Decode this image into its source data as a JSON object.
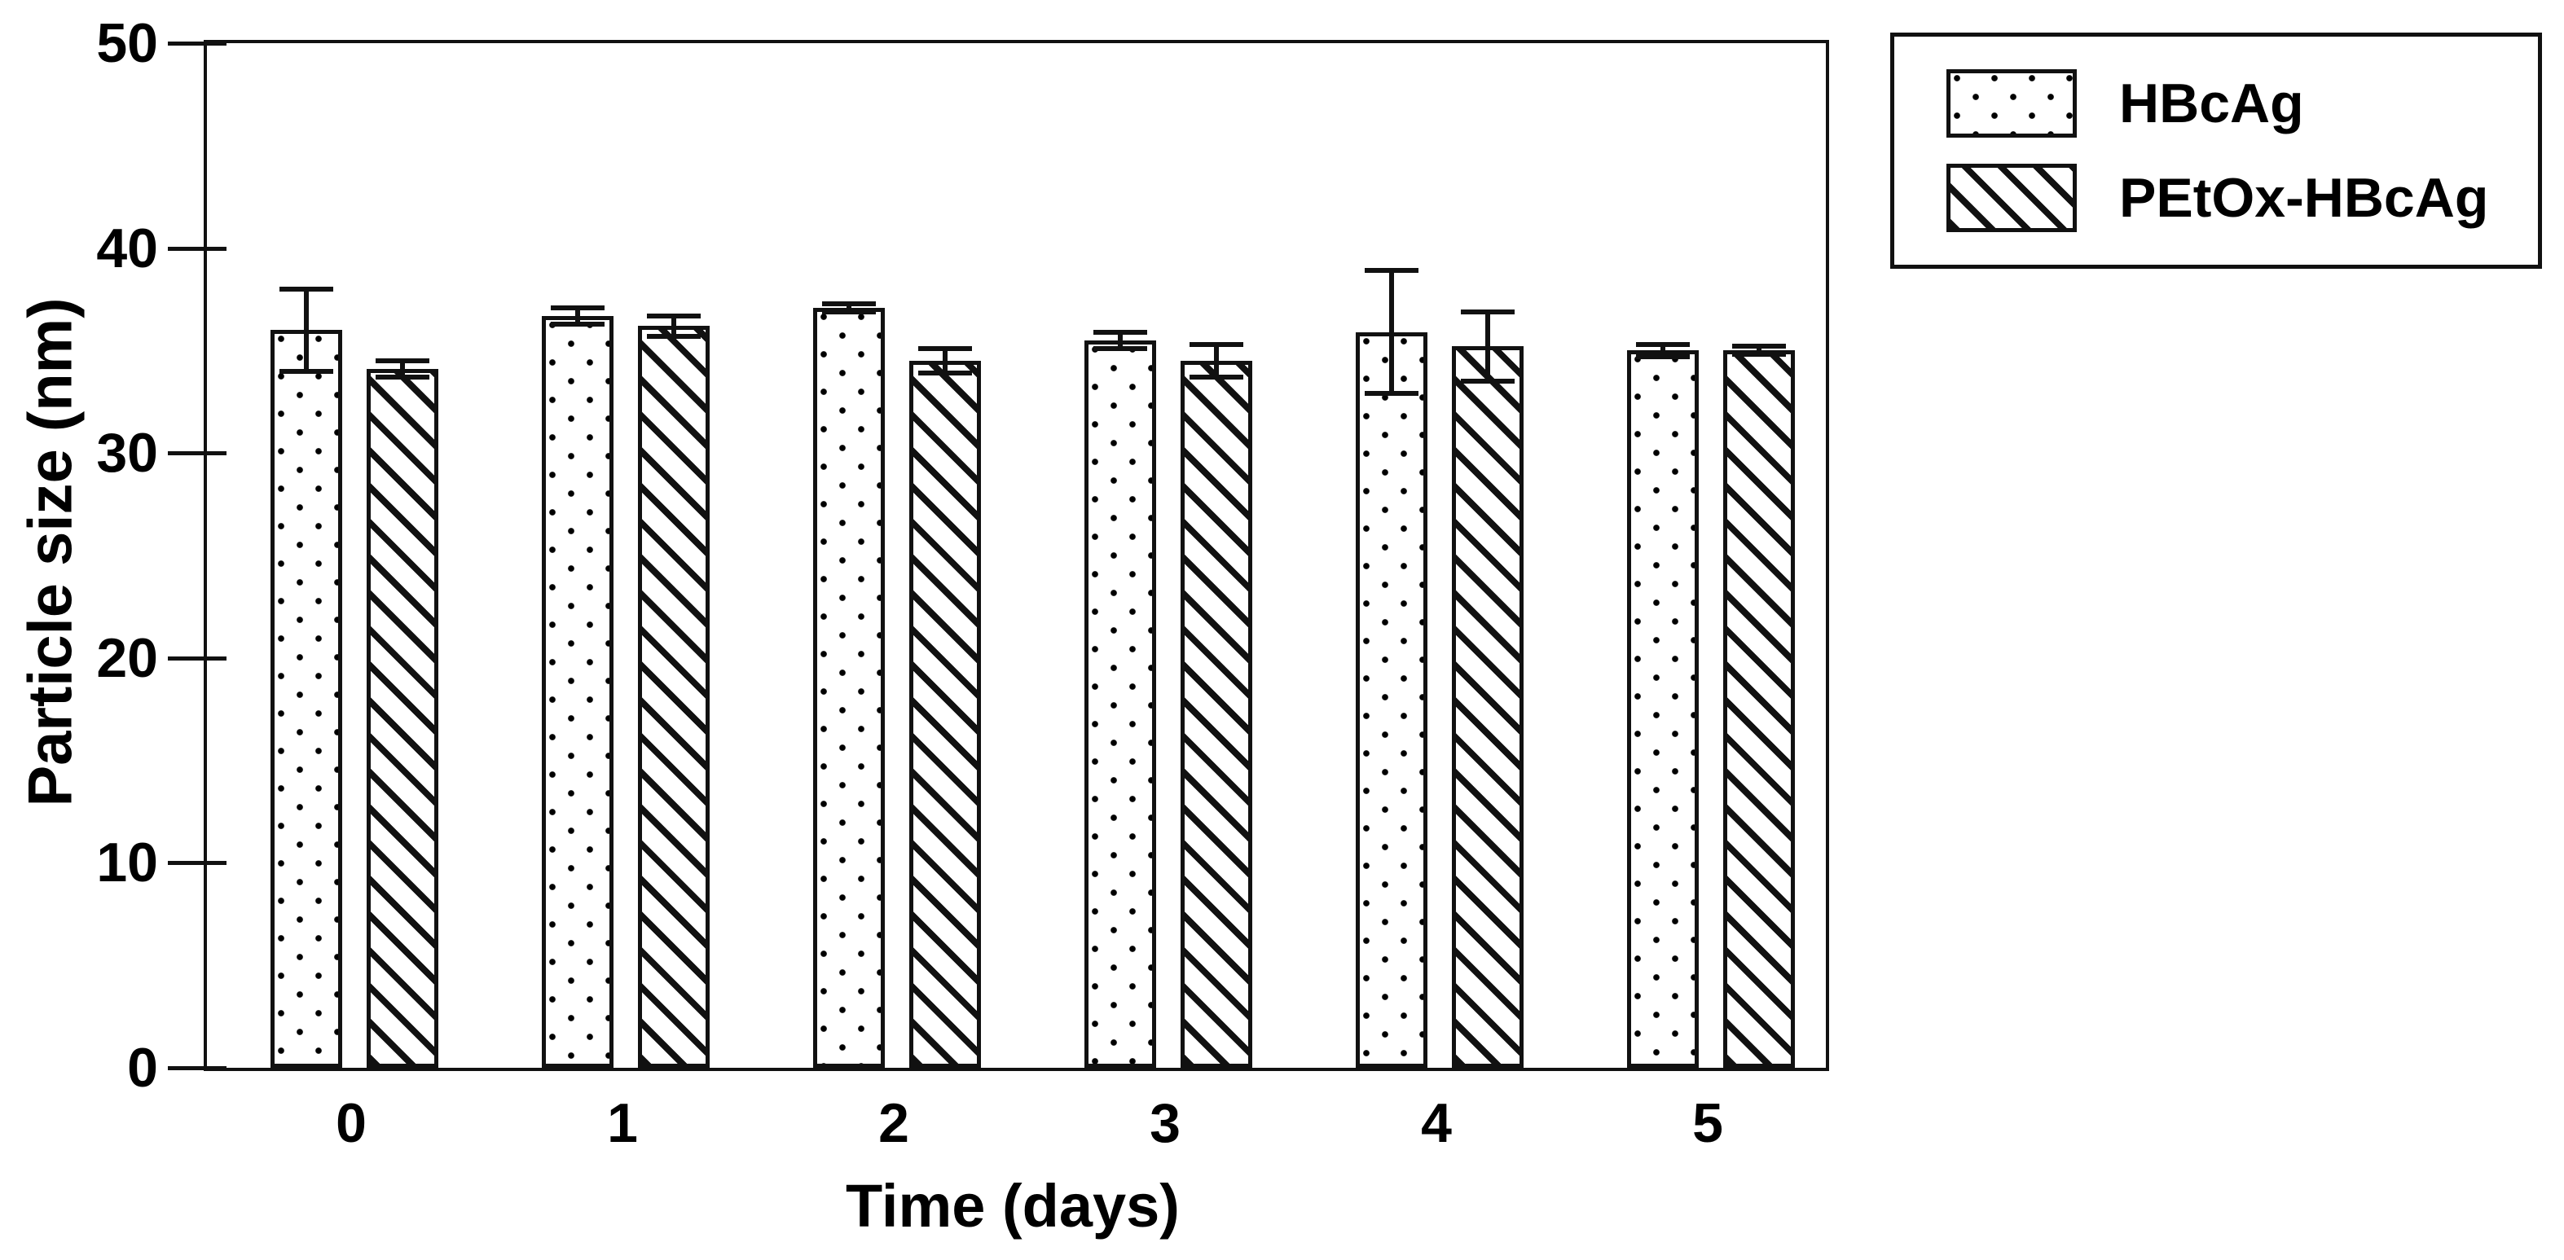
{
  "figure": {
    "background": "#ffffff",
    "ink_color": "#111111"
  },
  "y_axis": {
    "label": "Particle size (nm)",
    "tick_labels": [
      "0",
      "10",
      "20",
      "30",
      "40",
      "50"
    ]
  },
  "x_axis": {
    "label": "Time (days)",
    "tick_labels": [
      "0",
      "1",
      "2",
      "3",
      "4",
      "5"
    ]
  },
  "legend": {
    "items": [
      {
        "label": "HBcAg",
        "pattern": "dots"
      },
      {
        "label": "PEtOx-HBcAg",
        "pattern": "diagonal-stripes"
      }
    ]
  },
  "chart_data": {
    "type": "bar",
    "title": "",
    "xlabel": "Time (days)",
    "ylabel": "Particle size (nm)",
    "categories": [
      "0",
      "1",
      "2",
      "3",
      "4",
      "5"
    ],
    "ylim": [
      0,
      50
    ],
    "yticks": [
      0,
      10,
      20,
      30,
      40,
      50
    ],
    "grid": false,
    "legend_position": "outside-top-right",
    "error_bars": "symmetric, both directions, capped",
    "series": [
      {
        "name": "HBcAg",
        "pattern": "dots",
        "values": [
          36.0,
          36.7,
          37.1,
          35.5,
          35.9,
          35.0
        ],
        "errors": [
          2.0,
          0.4,
          0.2,
          0.4,
          3.0,
          0.3
        ]
      },
      {
        "name": "PEtOx-HBcAg",
        "pattern": "diagonal-stripes",
        "values": [
          34.1,
          36.2,
          34.5,
          34.5,
          35.2,
          35.0
        ],
        "errors": [
          0.4,
          0.5,
          0.6,
          0.8,
          1.7,
          0.2
        ]
      }
    ]
  }
}
